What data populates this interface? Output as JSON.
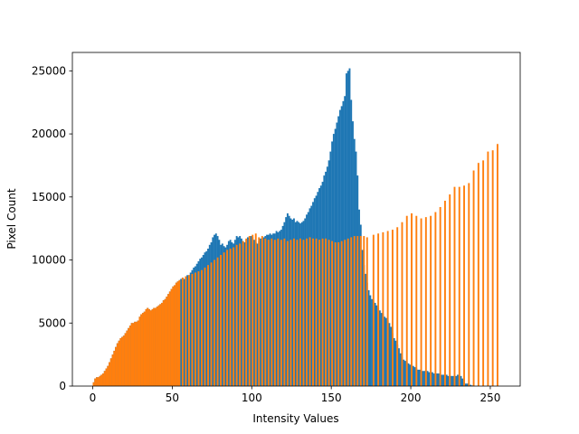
{
  "chart_data": {
    "type": "histogram",
    "xlabel": "Intensity Values",
    "ylabel": "Pixel Count",
    "xlim": [
      -12.8,
      268.8
    ],
    "ylim": [
      0,
      26460
    ],
    "xticks": [
      0,
      50,
      100,
      150,
      200,
      250
    ],
    "yticks": [
      0,
      5000,
      10000,
      15000,
      20000,
      25000
    ],
    "bins": [
      0,
      1,
      2,
      3,
      4,
      5,
      6,
      7,
      8,
      9,
      10,
      11,
      12,
      13,
      14,
      15,
      16,
      17,
      18,
      19,
      20,
      21,
      22,
      23,
      24,
      25,
      26,
      27,
      28,
      29,
      30,
      31,
      32,
      33,
      34,
      35,
      36,
      37,
      38,
      39,
      40,
      41,
      42,
      43,
      44,
      45,
      46,
      47,
      48,
      49,
      50,
      51,
      52,
      53,
      54,
      55,
      56,
      57,
      58,
      59,
      60,
      61,
      62,
      63,
      64,
      65,
      66,
      67,
      68,
      69,
      70,
      71,
      72,
      73,
      74,
      75,
      76,
      77,
      78,
      79,
      80,
      81,
      82,
      83,
      84,
      85,
      86,
      87,
      88,
      89,
      90,
      91,
      92,
      93,
      94,
      95,
      96,
      97,
      98,
      99,
      100,
      101,
      102,
      103,
      104,
      105,
      106,
      107,
      108,
      109,
      110,
      111,
      112,
      113,
      114,
      115,
      116,
      117,
      118,
      119,
      120,
      121,
      122,
      123,
      124,
      125,
      126,
      127,
      128,
      129,
      130,
      131,
      132,
      133,
      134,
      135,
      136,
      137,
      138,
      139,
      140,
      141,
      142,
      143,
      144,
      145,
      146,
      147,
      148,
      149,
      150,
      151,
      152,
      153,
      154,
      155,
      156,
      157,
      158,
      159,
      160,
      161,
      162,
      163,
      164,
      165,
      166,
      167,
      168,
      169,
      170,
      171,
      172,
      173,
      174,
      175,
      176,
      177,
      178,
      179,
      180,
      181,
      182,
      183,
      184,
      185,
      186,
      187,
      188,
      189,
      190,
      191,
      192,
      193,
      194,
      195,
      196,
      197,
      198,
      199,
      200,
      201,
      202,
      203,
      204,
      205,
      206,
      207,
      208,
      209,
      210,
      211,
      212,
      213,
      214,
      215,
      216,
      217,
      218,
      219,
      220,
      221,
      222,
      223,
      224,
      225,
      226,
      227,
      228,
      229,
      230,
      231,
      232,
      233,
      234,
      235,
      236,
      237,
      238,
      239,
      240,
      241,
      242,
      243,
      244,
      245,
      246,
      247,
      248,
      249,
      250,
      251,
      252,
      253,
      254,
      255,
      256
    ],
    "series": [
      {
        "color": "#1f77b4",
        "values": [
          300,
          600,
          700,
          700,
          800,
          900,
          1000,
          1200,
          1400,
          1600,
          1900,
          2200,
          2500,
          2800,
          3100,
          3400,
          3600,
          3800,
          3900,
          4000,
          4200,
          4400,
          4600,
          4800,
          5000,
          5000,
          5100,
          5100,
          5200,
          5500,
          5700,
          5800,
          5900,
          6100,
          6200,
          6100,
          6000,
          6100,
          6200,
          6200,
          6300,
          6400,
          6500,
          6600,
          6800,
          6900,
          7100,
          7300,
          7500,
          7700,
          7900,
          8000,
          8200,
          8300,
          8400,
          8500,
          8600,
          8500,
          8700,
          8800,
          8800,
          9000,
          9200,
          9400,
          9500,
          9700,
          9900,
          10100,
          10200,
          10400,
          10600,
          10700,
          10900,
          11200,
          11400,
          11800,
          12000,
          12100,
          11900,
          11600,
          11200,
          11300,
          11100,
          11000,
          11200,
          11500,
          11600,
          11400,
          11300,
          11600,
          11900,
          11800,
          11900,
          11700,
          11500,
          11400,
          11600,
          11800,
          11800,
          11900,
          11800,
          11600,
          11400,
          11300,
          11500,
          11700,
          11700,
          11800,
          11900,
          12000,
          12000,
          12100,
          12000,
          12100,
          12100,
          12300,
          12200,
          12300,
          12400,
          12700,
          13000,
          13400,
          13700,
          13500,
          13300,
          13200,
          13300,
          13000,
          13100,
          13000,
          12900,
          13000,
          13100,
          13300,
          13600,
          13800,
          14100,
          14300,
          14600,
          14900,
          15100,
          15400,
          15700,
          15900,
          16200,
          16700,
          17000,
          17400,
          17900,
          18600,
          19400,
          20000,
          20400,
          20900,
          21400,
          21900,
          22200,
          22600,
          23000,
          24800,
          25000,
          25200,
          22700,
          21000,
          19600,
          18600,
          16700,
          14000,
          12800,
          10800,
          9600,
          8900,
          8200,
          7600,
          7200,
          6900,
          6700,
          6600,
          6400,
          6200,
          6000,
          5800,
          5700,
          5500,
          5400,
          5200,
          5000,
          4700,
          4200,
          3800,
          3600,
          3300,
          3000,
          2600,
          2300,
          2100,
          2000,
          1900,
          1800,
          1700,
          1700,
          1600,
          1500,
          1400,
          1300,
          1300,
          1300,
          1200,
          1200,
          1200,
          1200,
          1100,
          1100,
          1100,
          1000,
          1000,
          1000,
          1000,
          900,
          900,
          900,
          900,
          900,
          800,
          800,
          800,
          800,
          800,
          800,
          900,
          800,
          800,
          600,
          300,
          200,
          200,
          100,
          100,
          50,
          20,
          0,
          0,
          0,
          0,
          0,
          0,
          0,
          0,
          0,
          0,
          0,
          0,
          0,
          0,
          0,
          0
        ]
      },
      {
        "color": "#ff7f0e",
        "values": [
          300,
          600,
          700,
          700,
          800,
          900,
          1000,
          1200,
          1400,
          1600,
          1900,
          2200,
          2500,
          2800,
          3100,
          3400,
          3600,
          3800,
          3900,
          4000,
          4200,
          4400,
          4600,
          4800,
          5000,
          5000,
          5100,
          5100,
          5200,
          5500,
          5700,
          5800,
          5900,
          6100,
          6200,
          6100,
          6000,
          6100,
          6200,
          6200,
          6300,
          6400,
          6500,
          6600,
          6800,
          6900,
          7100,
          7300,
          7500,
          7700,
          7900,
          8000,
          8200,
          8300,
          8400,
          0,
          8600,
          0,
          8700,
          0,
          8800,
          0,
          8900,
          0,
          9000,
          0,
          9100,
          0,
          9200,
          0,
          9400,
          0,
          9600,
          0,
          9800,
          0,
          10000,
          0,
          10200,
          0,
          10400,
          0,
          10600,
          0,
          10800,
          0,
          10900,
          0,
          11000,
          0,
          11200,
          0,
          11300,
          0,
          11500,
          0,
          11700,
          0,
          11900,
          0,
          12000,
          0,
          12100,
          0,
          11800,
          0,
          11900,
          0,
          11700,
          0,
          11600,
          0,
          11700,
          0,
          11600,
          0,
          11700,
          0,
          11600,
          0,
          11700,
          0,
          11500,
          0,
          11600,
          0,
          11700,
          0,
          11600,
          0,
          11700,
          0,
          11600,
          0,
          11700,
          0,
          11800,
          0,
          11700,
          0,
          11700,
          0,
          11600,
          0,
          11700,
          0,
          11700,
          0,
          11600,
          0,
          11500,
          0,
          11400,
          0,
          11400,
          0,
          11500,
          0,
          11600,
          0,
          11700,
          0,
          11800,
          0,
          11900,
          0,
          11900,
          0,
          11900,
          0,
          11900,
          0,
          11800,
          0,
          0,
          0,
          12000,
          0,
          0,
          12100,
          0,
          0,
          12200,
          0,
          0,
          12300,
          0,
          0,
          12400,
          0,
          0,
          12600,
          0,
          0,
          13000,
          0,
          0,
          13500,
          0,
          0,
          13700,
          0,
          0,
          13500,
          0,
          0,
          13300,
          0,
          0,
          13400,
          0,
          0,
          13500,
          0,
          0,
          13800,
          0,
          0,
          14200,
          0,
          0,
          14700,
          0,
          0,
          15200,
          0,
          0,
          15800,
          0,
          0,
          15800,
          0,
          0,
          15900,
          0,
          0,
          16100,
          0,
          0,
          17100,
          0,
          0,
          17700,
          0,
          0,
          17900,
          0,
          0,
          18600,
          0,
          0,
          18700,
          0,
          0,
          19200,
          0
        ]
      }
    ]
  }
}
